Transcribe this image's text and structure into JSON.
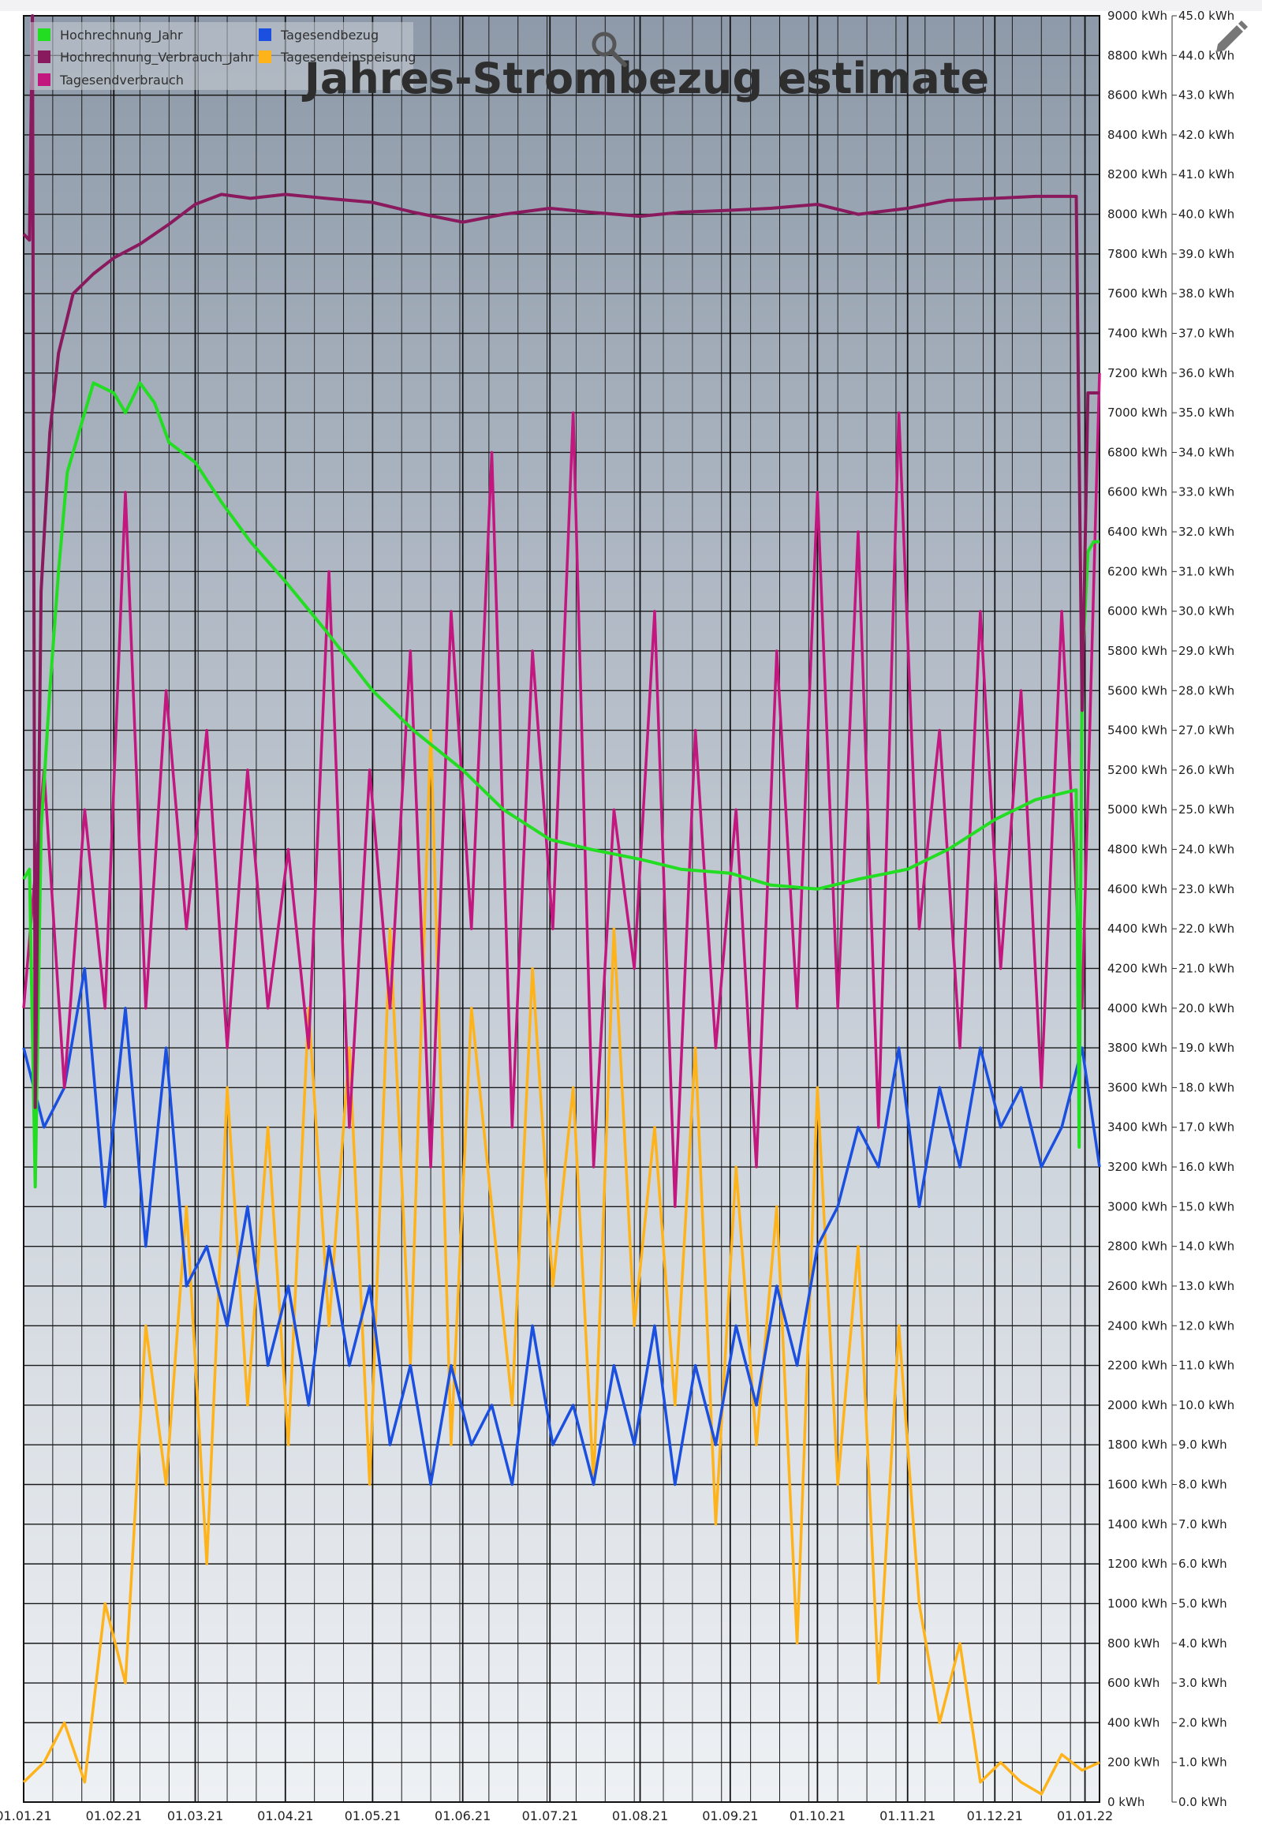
{
  "toolbar": {
    "zoom_icon": "magnifier-icon",
    "edit_icon": "pencil-icon"
  },
  "chart_data": {
    "type": "line",
    "title": "Jahres-Strombezug estimate",
    "xlabel": "",
    "x_ticks": [
      "01.01.21",
      "01.02.21",
      "01.03.21",
      "01.04.21",
      "01.05.21",
      "01.06.21",
      "01.07.21",
      "01.08.21",
      "01.09.21",
      "01.10.21",
      "01.11.21",
      "01.12.21",
      "01.01.22"
    ],
    "x_range": [
      "01.01.21",
      "06.01.22"
    ],
    "y_left": {
      "unit": "kWh",
      "range": [
        0,
        9000
      ],
      "ticks": [
        "0 kWh",
        "200 kWh",
        "400 kWh",
        "600 kWh",
        "800 kWh",
        "1000 kWh",
        "1200 kWh",
        "1400 kWh",
        "1600 kWh",
        "1800 kWh",
        "2000 kWh",
        "2200 kWh",
        "2400 kWh",
        "2600 kWh",
        "2800 kWh",
        "3000 kWh",
        "3200 kWh",
        "3400 kWh",
        "3600 kWh",
        "3800 kWh",
        "4000 kWh",
        "4200 kWh",
        "4400 kWh",
        "4600 kWh",
        "4800 kWh",
        "5000 kWh",
        "5200 kWh",
        "5400 kWh",
        "5600 kWh",
        "5800 kWh",
        "6000 kWh",
        "6200 kWh",
        "6400 kWh",
        "6600 kWh",
        "6800 kWh",
        "7000 kWh",
        "7200 kWh",
        "7400 kWh",
        "7600 kWh",
        "7800 kWh",
        "8000 kWh",
        "8200 kWh",
        "8400 kWh",
        "8600 kWh",
        "8800 kWh",
        "9000 kWh"
      ]
    },
    "y_right": {
      "unit": "kWh",
      "range": [
        0,
        45
      ],
      "ticks": [
        "0.0 kWh",
        "1.0 kWh",
        "2.0 kWh",
        "3.0 kWh",
        "4.0 kWh",
        "5.0 kWh",
        "6.0 kWh",
        "7.0 kWh",
        "8.0 kWh",
        "9.0 kWh",
        "10.0 kWh",
        "11.0 kWh",
        "12.0 kWh",
        "13.0 kWh",
        "14.0 kWh",
        "15.0 kWh",
        "16.0 kWh",
        "17.0 kWh",
        "18.0 kWh",
        "19.0 kWh",
        "20.0 kWh",
        "21.0 kWh",
        "22.0 kWh",
        "23.0 kWh",
        "24.0 kWh",
        "25.0 kWh",
        "26.0 kWh",
        "27.0 kWh",
        "28.0 kWh",
        "29.0 kWh",
        "30.0 kWh",
        "31.0 kWh",
        "32.0 kWh",
        "33.0 kWh",
        "34.0 kWh",
        "35.0 kWh",
        "36.0 kWh",
        "37.0 kWh",
        "38.0 kWh",
        "39.0 kWh",
        "40.0 kWh",
        "41.0 kWh",
        "42.0 kWh",
        "43.0 kWh",
        "44.0 kWh",
        "45.0 kWh"
      ]
    },
    "grid": true,
    "legend_position": "top-left",
    "legend": [
      {
        "name": "Hochrechnung_Jahr",
        "color": "#22dd22"
      },
      {
        "name": "Tagesendbezug",
        "color": "#1a4fe0"
      },
      {
        "name": "Hochrechnung_Verbrauch_Jahr",
        "color": "#8a1a5e"
      },
      {
        "name": "Tagesendeinspeisung",
        "color": "#ffb31a"
      },
      {
        "name": "Tagesendverbrauch",
        "color": "#c2177e"
      }
    ],
    "series": [
      {
        "name": "Hochrechnung_Jahr",
        "axis": "left",
        "color": "#22dd22",
        "x": [
          "01.01.21",
          "03.01.21",
          "05.01.21",
          "07.01.21",
          "10.01.21",
          "13.01.21",
          "16.01.21",
          "20.01.21",
          "25.01.21",
          "01.02.21",
          "05.02.21",
          "10.02.21",
          "15.02.21",
          "20.02.21",
          "01.03.21",
          "10.03.21",
          "20.03.21",
          "01.04.21",
          "15.04.21",
          "01.05.21",
          "15.05.21",
          "01.06.21",
          "15.06.21",
          "01.07.21",
          "15.07.21",
          "01.08.21",
          "15.08.21",
          "01.09.21",
          "15.09.21",
          "01.10.21",
          "15.10.21",
          "01.11.21",
          "15.11.21",
          "01.12.21",
          "15.12.21",
          "29.12.21",
          "30.12.21",
          "31.12.21",
          "02.01.22",
          "04.01.22",
          "06.01.22"
        ],
        "y": [
          4650,
          4700,
          3100,
          4900,
          5600,
          6200,
          6700,
          6900,
          7150,
          7100,
          7000,
          7150,
          7050,
          6850,
          6750,
          6550,
          6350,
          6150,
          5900,
          5600,
          5400,
          5200,
          5000,
          4850,
          4800,
          4750,
          4700,
          4680,
          4620,
          4600,
          4650,
          4700,
          4800,
          4950,
          5050,
          5100,
          3300,
          5700,
          6300,
          6350,
          6350
        ]
      },
      {
        "name": "Hochrechnung_Verbrauch_Jahr",
        "axis": "left",
        "color": "#8a1a5e",
        "x": [
          "01.01.21",
          "03.01.21",
          "04.01.21",
          "05.01.21",
          "07.01.21",
          "10.01.21",
          "13.01.21",
          "18.01.21",
          "25.01.21",
          "01.02.21",
          "10.02.21",
          "20.02.21",
          "01.03.21",
          "10.03.21",
          "20.03.21",
          "01.04.21",
          "15.04.21",
          "01.05.21",
          "15.05.21",
          "01.06.21",
          "15.06.21",
          "01.07.21",
          "15.07.21",
          "01.08.21",
          "15.08.21",
          "01.09.21",
          "15.09.21",
          "01.10.21",
          "15.10.21",
          "01.11.21",
          "15.11.21",
          "01.12.21",
          "15.12.21",
          "29.12.21",
          "31.12.21",
          "02.01.22",
          "04.01.22",
          "06.01.22"
        ],
        "y": [
          7900,
          7870,
          9000,
          3500,
          6100,
          6900,
          7300,
          7600,
          7700,
          7780,
          7850,
          7950,
          8050,
          8100,
          8080,
          8100,
          8080,
          8060,
          8010,
          7960,
          8000,
          8030,
          8010,
          7990,
          8010,
          8020,
          8030,
          8050,
          8000,
          8030,
          8070,
          8080,
          8090,
          8090,
          5500,
          7100,
          7100,
          7100
        ]
      },
      {
        "name": "Tagesendverbrauch",
        "axis": "right",
        "color": "#c2177e",
        "x": [
          "01.01.21",
          "08.01.21",
          "15.01.21",
          "22.01.21",
          "29.01.21",
          "05.02.21",
          "12.02.21",
          "19.02.21",
          "26.02.21",
          "05.03.21",
          "12.03.21",
          "19.03.21",
          "26.03.21",
          "02.04.21",
          "09.04.21",
          "16.04.21",
          "23.04.21",
          "30.04.21",
          "07.05.21",
          "14.05.21",
          "21.05.21",
          "28.05.21",
          "04.06.21",
          "11.06.21",
          "18.06.21",
          "25.06.21",
          "02.07.21",
          "09.07.21",
          "16.07.21",
          "23.07.21",
          "30.07.21",
          "06.08.21",
          "13.08.21",
          "20.08.21",
          "27.08.21",
          "03.09.21",
          "10.09.21",
          "17.09.21",
          "24.09.21",
          "01.10.21",
          "08.10.21",
          "15.10.21",
          "22.10.21",
          "29.10.21",
          "05.11.21",
          "12.11.21",
          "19.11.21",
          "26.11.21",
          "03.12.21",
          "10.12.21",
          "17.12.21",
          "24.12.21",
          "31.12.21",
          "06.01.22"
        ],
        "y": [
          20,
          26,
          18,
          25,
          20,
          33,
          20,
          28,
          22,
          27,
          19,
          26,
          20,
          24,
          19,
          31,
          17,
          26,
          20,
          29,
          16,
          30,
          22,
          34,
          17,
          29,
          22,
          35,
          16,
          25,
          21,
          30,
          15,
          27,
          19,
          25,
          16,
          29,
          20,
          33,
          20,
          32,
          17,
          35,
          22,
          27,
          19,
          30,
          21,
          28,
          18,
          30,
          20,
          36
        ]
      },
      {
        "name": "Tagesendbezug",
        "axis": "right",
        "color": "#1a4fe0",
        "x": [
          "01.01.21",
          "08.01.21",
          "15.01.21",
          "22.01.21",
          "29.01.21",
          "05.02.21",
          "12.02.21",
          "19.02.21",
          "26.02.21",
          "05.03.21",
          "12.03.21",
          "19.03.21",
          "26.03.21",
          "02.04.21",
          "09.04.21",
          "16.04.21",
          "23.04.21",
          "30.04.21",
          "07.05.21",
          "14.05.21",
          "21.05.21",
          "28.05.21",
          "04.06.21",
          "11.06.21",
          "18.06.21",
          "25.06.21",
          "02.07.21",
          "09.07.21",
          "16.07.21",
          "23.07.21",
          "30.07.21",
          "06.08.21",
          "13.08.21",
          "20.08.21",
          "27.08.21",
          "03.09.21",
          "10.09.21",
          "17.09.21",
          "24.09.21",
          "01.10.21",
          "08.10.21",
          "15.10.21",
          "22.10.21",
          "29.10.21",
          "05.11.21",
          "12.11.21",
          "19.11.21",
          "26.11.21",
          "03.12.21",
          "10.12.21",
          "17.12.21",
          "24.12.21",
          "31.12.21",
          "06.01.22"
        ],
        "y": [
          19,
          17,
          18,
          21,
          15,
          20,
          14,
          19,
          13,
          14,
          12,
          15,
          11,
          13,
          10,
          14,
          11,
          13,
          9,
          11,
          8,
          11,
          9,
          10,
          8,
          12,
          9,
          10,
          8,
          11,
          9,
          12,
          8,
          11,
          9,
          12,
          10,
          13,
          11,
          14,
          15,
          17,
          16,
          19,
          15,
          18,
          16,
          19,
          17,
          18,
          16,
          17,
          19,
          16
        ]
      },
      {
        "name": "Tagesendeinspeisung",
        "axis": "right",
        "color": "#ffb31a",
        "x": [
          "01.01.21",
          "08.01.21",
          "15.01.21",
          "22.01.21",
          "29.01.21",
          "05.02.21",
          "12.02.21",
          "19.02.21",
          "26.02.21",
          "05.03.21",
          "12.03.21",
          "19.03.21",
          "26.03.21",
          "02.04.21",
          "09.04.21",
          "16.04.21",
          "23.04.21",
          "30.04.21",
          "07.05.21",
          "14.05.21",
          "21.05.21",
          "28.05.21",
          "04.06.21",
          "11.06.21",
          "18.06.21",
          "25.06.21",
          "02.07.21",
          "09.07.21",
          "16.07.21",
          "23.07.21",
          "30.07.21",
          "06.08.21",
          "13.08.21",
          "20.08.21",
          "27.08.21",
          "03.09.21",
          "10.09.21",
          "17.09.21",
          "24.09.21",
          "01.10.21",
          "08.10.21",
          "15.10.21",
          "22.10.21",
          "29.10.21",
          "05.11.21",
          "12.11.21",
          "19.11.21",
          "26.11.21",
          "03.12.21",
          "10.12.21",
          "17.12.21",
          "24.12.21",
          "31.12.21",
          "06.01.22"
        ],
        "y": [
          0.5,
          1,
          2,
          0.5,
          5,
          3,
          12,
          8,
          15,
          6,
          18,
          10,
          17,
          9,
          20,
          12,
          19,
          8,
          22,
          11,
          27,
          9,
          20,
          15,
          10,
          21,
          13,
          18,
          8,
          22,
          12,
          17,
          10,
          19,
          7,
          16,
          9,
          15,
          4,
          18,
          8,
          14,
          3,
          12,
          5,
          2,
          4,
          0.5,
          1,
          0.5,
          0.2,
          1.2,
          0.8,
          1
        ]
      }
    ]
  }
}
